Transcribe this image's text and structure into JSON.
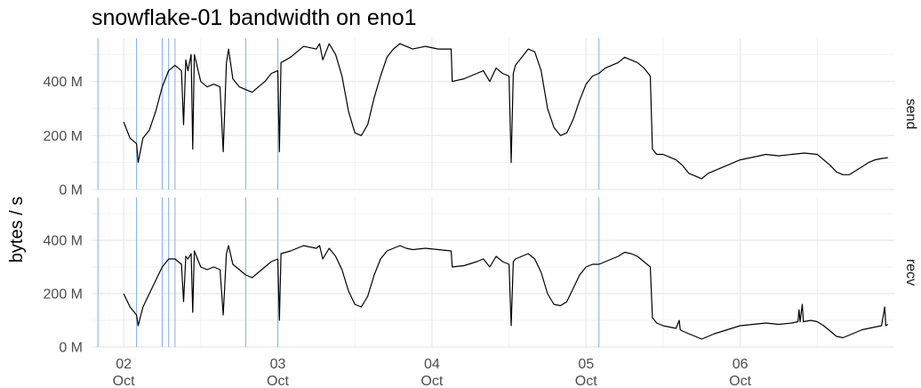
{
  "chart_data": {
    "type": "line",
    "title": "snowflake-01 bandwidth on eno1",
    "ylabel": "bytes / s",
    "xlabel": "",
    "x_ticks": [
      {
        "day": "02",
        "month": "Oct",
        "value": "2023-10-02"
      },
      {
        "day": "03",
        "month": "Oct",
        "value": "2023-10-03"
      },
      {
        "day": "04",
        "month": "Oct",
        "value": "2023-10-04"
      },
      {
        "day": "05",
        "month": "Oct",
        "value": "2023-10-05"
      },
      {
        "day": "06",
        "month": "Oct",
        "value": "2023-10-06"
      }
    ],
    "y_ticks": [
      {
        "label": "0 M",
        "value": 0
      },
      {
        "label": "200 M",
        "value": 200
      },
      {
        "label": "400 M",
        "value": 400
      }
    ],
    "xlim": [
      "2023-10-01 19:00",
      "2023-10-07 00:00"
    ],
    "ylim": [
      0,
      560
    ],
    "grid": true,
    "line_color": "#000000",
    "event_line_color": "#8fb3f0",
    "event_lines": [
      "2023-10-01 20:00",
      "2023-10-02 02:00",
      "2023-10-02 06:00",
      "2023-10-02 07:00",
      "2023-10-02 08:00",
      "2023-10-02 19:00",
      "2023-10-03 00:00",
      "2023-10-05 02:00"
    ],
    "panels": [
      {
        "strip": "send",
        "points": [
          [
            "2023-10-02 00:00",
            250
          ],
          [
            "2023-10-02 01:00",
            190
          ],
          [
            "2023-10-02 02:00",
            170
          ],
          [
            "2023-10-02 02:15",
            100
          ],
          [
            "2023-10-02 03:00",
            190
          ],
          [
            "2023-10-02 04:00",
            220
          ],
          [
            "2023-10-02 05:00",
            290
          ],
          [
            "2023-10-02 06:00",
            380
          ],
          [
            "2023-10-02 07:00",
            440
          ],
          [
            "2023-10-02 08:00",
            460
          ],
          [
            "2023-10-02 09:00",
            440
          ],
          [
            "2023-10-02 09:20",
            240
          ],
          [
            "2023-10-02 09:40",
            480
          ],
          [
            "2023-10-02 10:00",
            440
          ],
          [
            "2023-10-02 10:30",
            500
          ],
          [
            "2023-10-02 10:45",
            150
          ],
          [
            "2023-10-02 11:00",
            500
          ],
          [
            "2023-10-02 12:00",
            400
          ],
          [
            "2023-10-02 13:00",
            380
          ],
          [
            "2023-10-02 14:00",
            390
          ],
          [
            "2023-10-02 15:00",
            380
          ],
          [
            "2023-10-02 15:30",
            140
          ],
          [
            "2023-10-02 16:00",
            470
          ],
          [
            "2023-10-02 16:20",
            520
          ],
          [
            "2023-10-02 17:00",
            410
          ],
          [
            "2023-10-02 18:00",
            380
          ],
          [
            "2023-10-02 19:00",
            370
          ],
          [
            "2023-10-02 20:00",
            360
          ],
          [
            "2023-10-02 21:00",
            380
          ],
          [
            "2023-10-02 22:00",
            400
          ],
          [
            "2023-10-02 23:00",
            430
          ],
          [
            "2023-10-03 00:00",
            440
          ],
          [
            "2023-10-03 00:15",
            140
          ],
          [
            "2023-10-03 00:30",
            470
          ],
          [
            "2023-10-03 02:00",
            490
          ],
          [
            "2023-10-03 04:00",
            530
          ],
          [
            "2023-10-03 06:00",
            520
          ],
          [
            "2023-10-03 06:30",
            540
          ],
          [
            "2023-10-03 07:00",
            480
          ],
          [
            "2023-10-03 08:00",
            540
          ],
          [
            "2023-10-03 09:00",
            500
          ],
          [
            "2023-10-03 10:00",
            420
          ],
          [
            "2023-10-03 11:00",
            290
          ],
          [
            "2023-10-03 12:00",
            210
          ],
          [
            "2023-10-03 13:00",
            200
          ],
          [
            "2023-10-03 14:00",
            240
          ],
          [
            "2023-10-03 15:00",
            340
          ],
          [
            "2023-10-03 16:00",
            420
          ],
          [
            "2023-10-03 17:00",
            490
          ],
          [
            "2023-10-03 18:00",
            520
          ],
          [
            "2023-10-03 19:00",
            540
          ],
          [
            "2023-10-03 20:00",
            530
          ],
          [
            "2023-10-03 21:00",
            520
          ],
          [
            "2023-10-03 23:00",
            530
          ],
          [
            "2023-10-04 01:00",
            520
          ],
          [
            "2023-10-04 03:00",
            520
          ],
          [
            "2023-10-04 03:10",
            400
          ],
          [
            "2023-10-04 05:00",
            410
          ],
          [
            "2023-10-04 07:00",
            430
          ],
          [
            "2023-10-04 08:00",
            440
          ],
          [
            "2023-10-04 09:00",
            400
          ],
          [
            "2023-10-04 10:00",
            450
          ],
          [
            "2023-10-04 11:00",
            430
          ],
          [
            "2023-10-04 12:00",
            420
          ],
          [
            "2023-10-04 12:20",
            100
          ],
          [
            "2023-10-04 12:40",
            430
          ],
          [
            "2023-10-04 13:00",
            460
          ],
          [
            "2023-10-04 14:00",
            490
          ],
          [
            "2023-10-04 15:00",
            520
          ],
          [
            "2023-10-04 16:00",
            510
          ],
          [
            "2023-10-04 17:00",
            440
          ],
          [
            "2023-10-04 18:00",
            300
          ],
          [
            "2023-10-04 19:00",
            230
          ],
          [
            "2023-10-04 20:00",
            200
          ],
          [
            "2023-10-04 21:00",
            210
          ],
          [
            "2023-10-04 22:00",
            260
          ],
          [
            "2023-10-04 23:00",
            330
          ],
          [
            "2023-10-05 00:00",
            390
          ],
          [
            "2023-10-05 01:00",
            420
          ],
          [
            "2023-10-05 02:00",
            430
          ],
          [
            "2023-10-05 03:00",
            450
          ],
          [
            "2023-10-05 04:00",
            460
          ],
          [
            "2023-10-05 05:00",
            470
          ],
          [
            "2023-10-05 06:00",
            490
          ],
          [
            "2023-10-05 07:00",
            480
          ],
          [
            "2023-10-05 08:00",
            470
          ],
          [
            "2023-10-05 09:00",
            450
          ],
          [
            "2023-10-05 10:00",
            420
          ],
          [
            "2023-10-05 10:20",
            150
          ],
          [
            "2023-10-05 11:00",
            130
          ],
          [
            "2023-10-05 12:00",
            130
          ],
          [
            "2023-10-05 13:00",
            120
          ],
          [
            "2023-10-05 14:00",
            110
          ],
          [
            "2023-10-05 15:00",
            90
          ],
          [
            "2023-10-05 16:00",
            60
          ],
          [
            "2023-10-05 17:00",
            50
          ],
          [
            "2023-10-05 18:00",
            40
          ],
          [
            "2023-10-05 19:00",
            60
          ],
          [
            "2023-10-05 20:00",
            70
          ],
          [
            "2023-10-05 22:00",
            90
          ],
          [
            "2023-10-06 00:00",
            110
          ],
          [
            "2023-10-06 02:00",
            120
          ],
          [
            "2023-10-06 04:00",
            130
          ],
          [
            "2023-10-06 06:00",
            125
          ],
          [
            "2023-10-06 08:00",
            130
          ],
          [
            "2023-10-06 10:00",
            135
          ],
          [
            "2023-10-06 12:00",
            130
          ],
          [
            "2023-10-06 13:00",
            110
          ],
          [
            "2023-10-06 14:00",
            90
          ],
          [
            "2023-10-06 15:00",
            65
          ],
          [
            "2023-10-06 16:00",
            55
          ],
          [
            "2023-10-06 17:00",
            55
          ],
          [
            "2023-10-06 18:00",
            70
          ],
          [
            "2023-10-06 19:00",
            85
          ],
          [
            "2023-10-06 20:00",
            100
          ],
          [
            "2023-10-06 21:00",
            110
          ],
          [
            "2023-10-06 22:00",
            115
          ],
          [
            "2023-10-06 23:00",
            118
          ]
        ]
      },
      {
        "strip": "recv",
        "points": [
          [
            "2023-10-02 00:00",
            200
          ],
          [
            "2023-10-02 01:00",
            150
          ],
          [
            "2023-10-02 02:00",
            120
          ],
          [
            "2023-10-02 02:15",
            80
          ],
          [
            "2023-10-02 03:00",
            150
          ],
          [
            "2023-10-02 04:00",
            200
          ],
          [
            "2023-10-02 05:00",
            250
          ],
          [
            "2023-10-02 06:00",
            300
          ],
          [
            "2023-10-02 07:00",
            330
          ],
          [
            "2023-10-02 08:00",
            330
          ],
          [
            "2023-10-02 09:00",
            310
          ],
          [
            "2023-10-02 09:20",
            170
          ],
          [
            "2023-10-02 09:40",
            340
          ],
          [
            "2023-10-02 10:00",
            330
          ],
          [
            "2023-10-02 10:30",
            350
          ],
          [
            "2023-10-02 10:45",
            130
          ],
          [
            "2023-10-02 11:00",
            360
          ],
          [
            "2023-10-02 12:00",
            300
          ],
          [
            "2023-10-02 13:00",
            290
          ],
          [
            "2023-10-02 14:00",
            300
          ],
          [
            "2023-10-02 15:00",
            290
          ],
          [
            "2023-10-02 15:30",
            120
          ],
          [
            "2023-10-02 16:00",
            350
          ],
          [
            "2023-10-02 16:20",
            380
          ],
          [
            "2023-10-02 17:00",
            310
          ],
          [
            "2023-10-02 18:00",
            290
          ],
          [
            "2023-10-02 19:00",
            270
          ],
          [
            "2023-10-02 20:00",
            260
          ],
          [
            "2023-10-02 21:00",
            280
          ],
          [
            "2023-10-02 22:00",
            300
          ],
          [
            "2023-10-02 23:00",
            320
          ],
          [
            "2023-10-03 00:00",
            330
          ],
          [
            "2023-10-03 00:15",
            100
          ],
          [
            "2023-10-03 00:30",
            350
          ],
          [
            "2023-10-03 02:00",
            360
          ],
          [
            "2023-10-03 04:00",
            380
          ],
          [
            "2023-10-03 06:00",
            370
          ],
          [
            "2023-10-03 06:30",
            380
          ],
          [
            "2023-10-03 07:00",
            330
          ],
          [
            "2023-10-03 08:00",
            370
          ],
          [
            "2023-10-03 09:00",
            340
          ],
          [
            "2023-10-03 10:00",
            290
          ],
          [
            "2023-10-03 11:00",
            210
          ],
          [
            "2023-10-03 12:00",
            160
          ],
          [
            "2023-10-03 13:00",
            150
          ],
          [
            "2023-10-03 14:00",
            190
          ],
          [
            "2023-10-03 15:00",
            270
          ],
          [
            "2023-10-03 16:00",
            330
          ],
          [
            "2023-10-03 17:00",
            360
          ],
          [
            "2023-10-03 18:00",
            370
          ],
          [
            "2023-10-03 19:00",
            380
          ],
          [
            "2023-10-03 20:00",
            370
          ],
          [
            "2023-10-03 21:00",
            365
          ],
          [
            "2023-10-03 23:00",
            370
          ],
          [
            "2023-10-04 01:00",
            365
          ],
          [
            "2023-10-04 03:00",
            360
          ],
          [
            "2023-10-04 03:10",
            300
          ],
          [
            "2023-10-04 05:00",
            305
          ],
          [
            "2023-10-04 07:00",
            320
          ],
          [
            "2023-10-04 08:00",
            330
          ],
          [
            "2023-10-04 09:00",
            300
          ],
          [
            "2023-10-04 10:00",
            340
          ],
          [
            "2023-10-04 11:00",
            320
          ],
          [
            "2023-10-04 12:00",
            310
          ],
          [
            "2023-10-04 12:20",
            80
          ],
          [
            "2023-10-04 12:40",
            320
          ],
          [
            "2023-10-04 13:00",
            330
          ],
          [
            "2023-10-04 14:00",
            340
          ],
          [
            "2023-10-04 15:00",
            350
          ],
          [
            "2023-10-04 16:00",
            330
          ],
          [
            "2023-10-04 17:00",
            280
          ],
          [
            "2023-10-04 18:00",
            200
          ],
          [
            "2023-10-04 19:00",
            160
          ],
          [
            "2023-10-04 20:00",
            155
          ],
          [
            "2023-10-04 21:00",
            170
          ],
          [
            "2023-10-04 22:00",
            220
          ],
          [
            "2023-10-04 23:00",
            270
          ],
          [
            "2023-10-05 00:00",
            300
          ],
          [
            "2023-10-05 01:00",
            310
          ],
          [
            "2023-10-05 02:00",
            310
          ],
          [
            "2023-10-05 03:00",
            320
          ],
          [
            "2023-10-05 04:00",
            330
          ],
          [
            "2023-10-05 05:00",
            340
          ],
          [
            "2023-10-05 06:00",
            355
          ],
          [
            "2023-10-05 07:00",
            350
          ],
          [
            "2023-10-05 08:00",
            340
          ],
          [
            "2023-10-05 09:00",
            320
          ],
          [
            "2023-10-05 10:00",
            300
          ],
          [
            "2023-10-05 10:20",
            110
          ],
          [
            "2023-10-05 11:00",
            90
          ],
          [
            "2023-10-05 12:00",
            80
          ],
          [
            "2023-10-05 13:00",
            75
          ],
          [
            "2023-10-05 14:00",
            70
          ],
          [
            "2023-10-05 14:30",
            100
          ],
          [
            "2023-10-05 14:40",
            65
          ],
          [
            "2023-10-05 15:00",
            60
          ],
          [
            "2023-10-05 16:00",
            50
          ],
          [
            "2023-10-05 17:00",
            40
          ],
          [
            "2023-10-05 18:00",
            30
          ],
          [
            "2023-10-05 19:00",
            40
          ],
          [
            "2023-10-05 20:00",
            50
          ],
          [
            "2023-10-05 22:00",
            65
          ],
          [
            "2023-10-06 00:00",
            80
          ],
          [
            "2023-10-06 02:00",
            85
          ],
          [
            "2023-10-06 04:00",
            90
          ],
          [
            "2023-10-06 06:00",
            85
          ],
          [
            "2023-10-06 08:00",
            90
          ],
          [
            "2023-10-06 09:00",
            95
          ],
          [
            "2023-10-06 09:10",
            140
          ],
          [
            "2023-10-06 09:20",
            95
          ],
          [
            "2023-10-06 09:40",
            160
          ],
          [
            "2023-10-06 09:50",
            95
          ],
          [
            "2023-10-06 11:00",
            100
          ],
          [
            "2023-10-06 12:00",
            95
          ],
          [
            "2023-10-06 13:00",
            80
          ],
          [
            "2023-10-06 14:00",
            60
          ],
          [
            "2023-10-06 15:00",
            40
          ],
          [
            "2023-10-06 16:00",
            35
          ],
          [
            "2023-10-06 17:00",
            45
          ],
          [
            "2023-10-06 18:00",
            55
          ],
          [
            "2023-10-06 19:00",
            65
          ],
          [
            "2023-10-06 20:00",
            70
          ],
          [
            "2023-10-06 21:00",
            75
          ],
          [
            "2023-10-06 22:00",
            80
          ],
          [
            "2023-10-06 22:30",
            150
          ],
          [
            "2023-10-06 22:40",
            80
          ],
          [
            "2023-10-06 23:00",
            85
          ]
        ]
      }
    ]
  }
}
